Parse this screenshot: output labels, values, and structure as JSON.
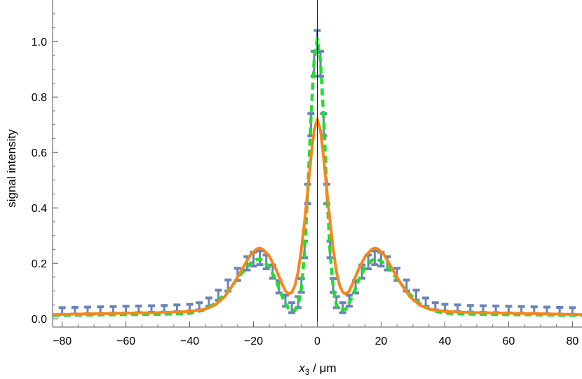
{
  "chart_data": {
    "type": "line",
    "title": "",
    "xlabel": {
      "var": "x",
      "sub": "3",
      "unit": " / μm"
    },
    "ylabel": "signal intensity",
    "xlim": [
      -83,
      83
    ],
    "ylim": [
      -0.03,
      1.15
    ],
    "xticks": [
      -80,
      -60,
      -40,
      -20,
      0,
      20,
      40,
      60,
      80
    ],
    "xtick_labels": [
      "−80",
      "−60",
      "−40",
      "−20",
      "0",
      "20",
      "40",
      "60",
      "80"
    ],
    "yticks": [
      0.0,
      0.2,
      0.4,
      0.6,
      0.8,
      1.0
    ],
    "ytick_labels": [
      "0.0",
      "0.2",
      "0.4",
      "0.6",
      "0.8",
      "1.0"
    ],
    "grid": false,
    "legend": "none",
    "series": [
      {
        "kind": "errorbar",
        "color": "#6a84b6",
        "points": [
          [
            -80,
            0.028,
            0.012
          ],
          [
            -76,
            0.029,
            0.012
          ],
          [
            -72,
            0.03,
            0.012
          ],
          [
            -68,
            0.031,
            0.012
          ],
          [
            -64,
            0.032,
            0.012
          ],
          [
            -60,
            0.033,
            0.012
          ],
          [
            -56,
            0.034,
            0.012
          ],
          [
            -52,
            0.035,
            0.012
          ],
          [
            -48,
            0.036,
            0.012
          ],
          [
            -44,
            0.038,
            0.012
          ],
          [
            -40,
            0.04,
            0.012
          ],
          [
            -37,
            0.045,
            0.013
          ],
          [
            -34,
            0.06,
            0.015
          ],
          [
            -31,
            0.085,
            0.018
          ],
          [
            -28,
            0.12,
            0.02
          ],
          [
            -25,
            0.16,
            0.022
          ],
          [
            -22,
            0.2,
            0.024
          ],
          [
            -20,
            0.215,
            0.025
          ],
          [
            -18,
            0.22,
            0.025
          ],
          [
            -16,
            0.205,
            0.025
          ],
          [
            -14,
            0.17,
            0.024
          ],
          [
            -12,
            0.115,
            0.022
          ],
          [
            -10,
            0.065,
            0.02
          ],
          [
            -8,
            0.04,
            0.018
          ],
          [
            -6,
            0.06,
            0.02
          ],
          [
            -5,
            0.12,
            0.025
          ],
          [
            -4,
            0.25,
            0.03
          ],
          [
            -3,
            0.45,
            0.035
          ],
          [
            -2,
            0.7,
            0.04
          ],
          [
            -1,
            0.92,
            0.045
          ],
          [
            0,
            1.0,
            0.04
          ],
          [
            1,
            0.92,
            0.045
          ],
          [
            2,
            0.7,
            0.04
          ],
          [
            3,
            0.45,
            0.035
          ],
          [
            4,
            0.25,
            0.03
          ],
          [
            5,
            0.12,
            0.025
          ],
          [
            6,
            0.06,
            0.02
          ],
          [
            8,
            0.04,
            0.018
          ],
          [
            10,
            0.065,
            0.02
          ],
          [
            12,
            0.115,
            0.022
          ],
          [
            14,
            0.17,
            0.024
          ],
          [
            16,
            0.205,
            0.025
          ],
          [
            18,
            0.22,
            0.025
          ],
          [
            20,
            0.215,
            0.025
          ],
          [
            22,
            0.2,
            0.024
          ],
          [
            25,
            0.16,
            0.022
          ],
          [
            28,
            0.12,
            0.02
          ],
          [
            31,
            0.085,
            0.018
          ],
          [
            34,
            0.06,
            0.015
          ],
          [
            37,
            0.045,
            0.013
          ],
          [
            40,
            0.04,
            0.012
          ],
          [
            44,
            0.038,
            0.012
          ],
          [
            48,
            0.036,
            0.012
          ],
          [
            52,
            0.035,
            0.012
          ],
          [
            56,
            0.034,
            0.012
          ],
          [
            60,
            0.033,
            0.012
          ],
          [
            64,
            0.032,
            0.012
          ],
          [
            68,
            0.031,
            0.012
          ],
          [
            72,
            0.03,
            0.012
          ],
          [
            76,
            0.029,
            0.012
          ],
          [
            80,
            0.028,
            0.012
          ]
        ]
      },
      {
        "kind": "line",
        "style": "dashed",
        "color": "#22dd33",
        "points": [
          [
            -83,
            0.012
          ],
          [
            -70,
            0.014
          ],
          [
            -60,
            0.015
          ],
          [
            -50,
            0.016
          ],
          [
            -40,
            0.02
          ],
          [
            -36,
            0.03
          ],
          [
            -32,
            0.055
          ],
          [
            -28,
            0.1
          ],
          [
            -24,
            0.16
          ],
          [
            -21,
            0.2
          ],
          [
            -19,
            0.214
          ],
          [
            -18,
            0.215
          ],
          [
            -17,
            0.21
          ],
          [
            -15,
            0.185
          ],
          [
            -13,
            0.14
          ],
          [
            -11,
            0.08
          ],
          [
            -9,
            0.035
          ],
          [
            -7,
            0.03
          ],
          [
            -6,
            0.05
          ],
          [
            -5,
            0.11
          ],
          [
            -4,
            0.24
          ],
          [
            -3,
            0.46
          ],
          [
            -2,
            0.72
          ],
          [
            -1,
            0.93
          ],
          [
            0,
            1.01
          ],
          [
            1,
            0.93
          ],
          [
            2,
            0.72
          ],
          [
            3,
            0.46
          ],
          [
            4,
            0.24
          ],
          [
            5,
            0.11
          ],
          [
            6,
            0.05
          ],
          [
            7,
            0.03
          ],
          [
            9,
            0.035
          ],
          [
            11,
            0.08
          ],
          [
            13,
            0.14
          ],
          [
            15,
            0.185
          ],
          [
            17,
            0.21
          ],
          [
            18,
            0.215
          ],
          [
            19,
            0.214
          ],
          [
            21,
            0.2
          ],
          [
            24,
            0.16
          ],
          [
            28,
            0.1
          ],
          [
            32,
            0.055
          ],
          [
            36,
            0.03
          ],
          [
            40,
            0.02
          ],
          [
            50,
            0.016
          ],
          [
            60,
            0.015
          ],
          [
            70,
            0.014
          ],
          [
            83,
            0.012
          ]
        ]
      },
      {
        "kind": "line",
        "style": "solid",
        "color": "#f7861b",
        "points": [
          [
            -83,
            0.015
          ],
          [
            -70,
            0.018
          ],
          [
            -60,
            0.02
          ],
          [
            -50,
            0.022
          ],
          [
            -40,
            0.026
          ],
          [
            -35,
            0.035
          ],
          [
            -32,
            0.05
          ],
          [
            -29,
            0.08
          ],
          [
            -26,
            0.13
          ],
          [
            -23,
            0.19
          ],
          [
            -21,
            0.23
          ],
          [
            -19,
            0.252
          ],
          [
            -18,
            0.255
          ],
          [
            -17,
            0.25
          ],
          [
            -15,
            0.225
          ],
          [
            -13,
            0.18
          ],
          [
            -11,
            0.125
          ],
          [
            -10,
            0.1
          ],
          [
            -9,
            0.09
          ],
          [
            -8,
            0.095
          ],
          [
            -7,
            0.12
          ],
          [
            -6,
            0.17
          ],
          [
            -5,
            0.25
          ],
          [
            -4,
            0.35
          ],
          [
            -3,
            0.46
          ],
          [
            -2,
            0.58
          ],
          [
            -1,
            0.68
          ],
          [
            0,
            0.72
          ],
          [
            1,
            0.68
          ],
          [
            2,
            0.58
          ],
          [
            3,
            0.46
          ],
          [
            4,
            0.35
          ],
          [
            5,
            0.25
          ],
          [
            6,
            0.17
          ],
          [
            7,
            0.12
          ],
          [
            8,
            0.095
          ],
          [
            9,
            0.09
          ],
          [
            10,
            0.1
          ],
          [
            11,
            0.125
          ],
          [
            13,
            0.18
          ],
          [
            15,
            0.225
          ],
          [
            17,
            0.25
          ],
          [
            18,
            0.255
          ],
          [
            19,
            0.252
          ],
          [
            21,
            0.23
          ],
          [
            23,
            0.19
          ],
          [
            26,
            0.13
          ],
          [
            29,
            0.08
          ],
          [
            32,
            0.05
          ],
          [
            35,
            0.035
          ],
          [
            40,
            0.026
          ],
          [
            50,
            0.022
          ],
          [
            60,
            0.02
          ],
          [
            70,
            0.018
          ],
          [
            83,
            0.015
          ]
        ]
      }
    ]
  }
}
